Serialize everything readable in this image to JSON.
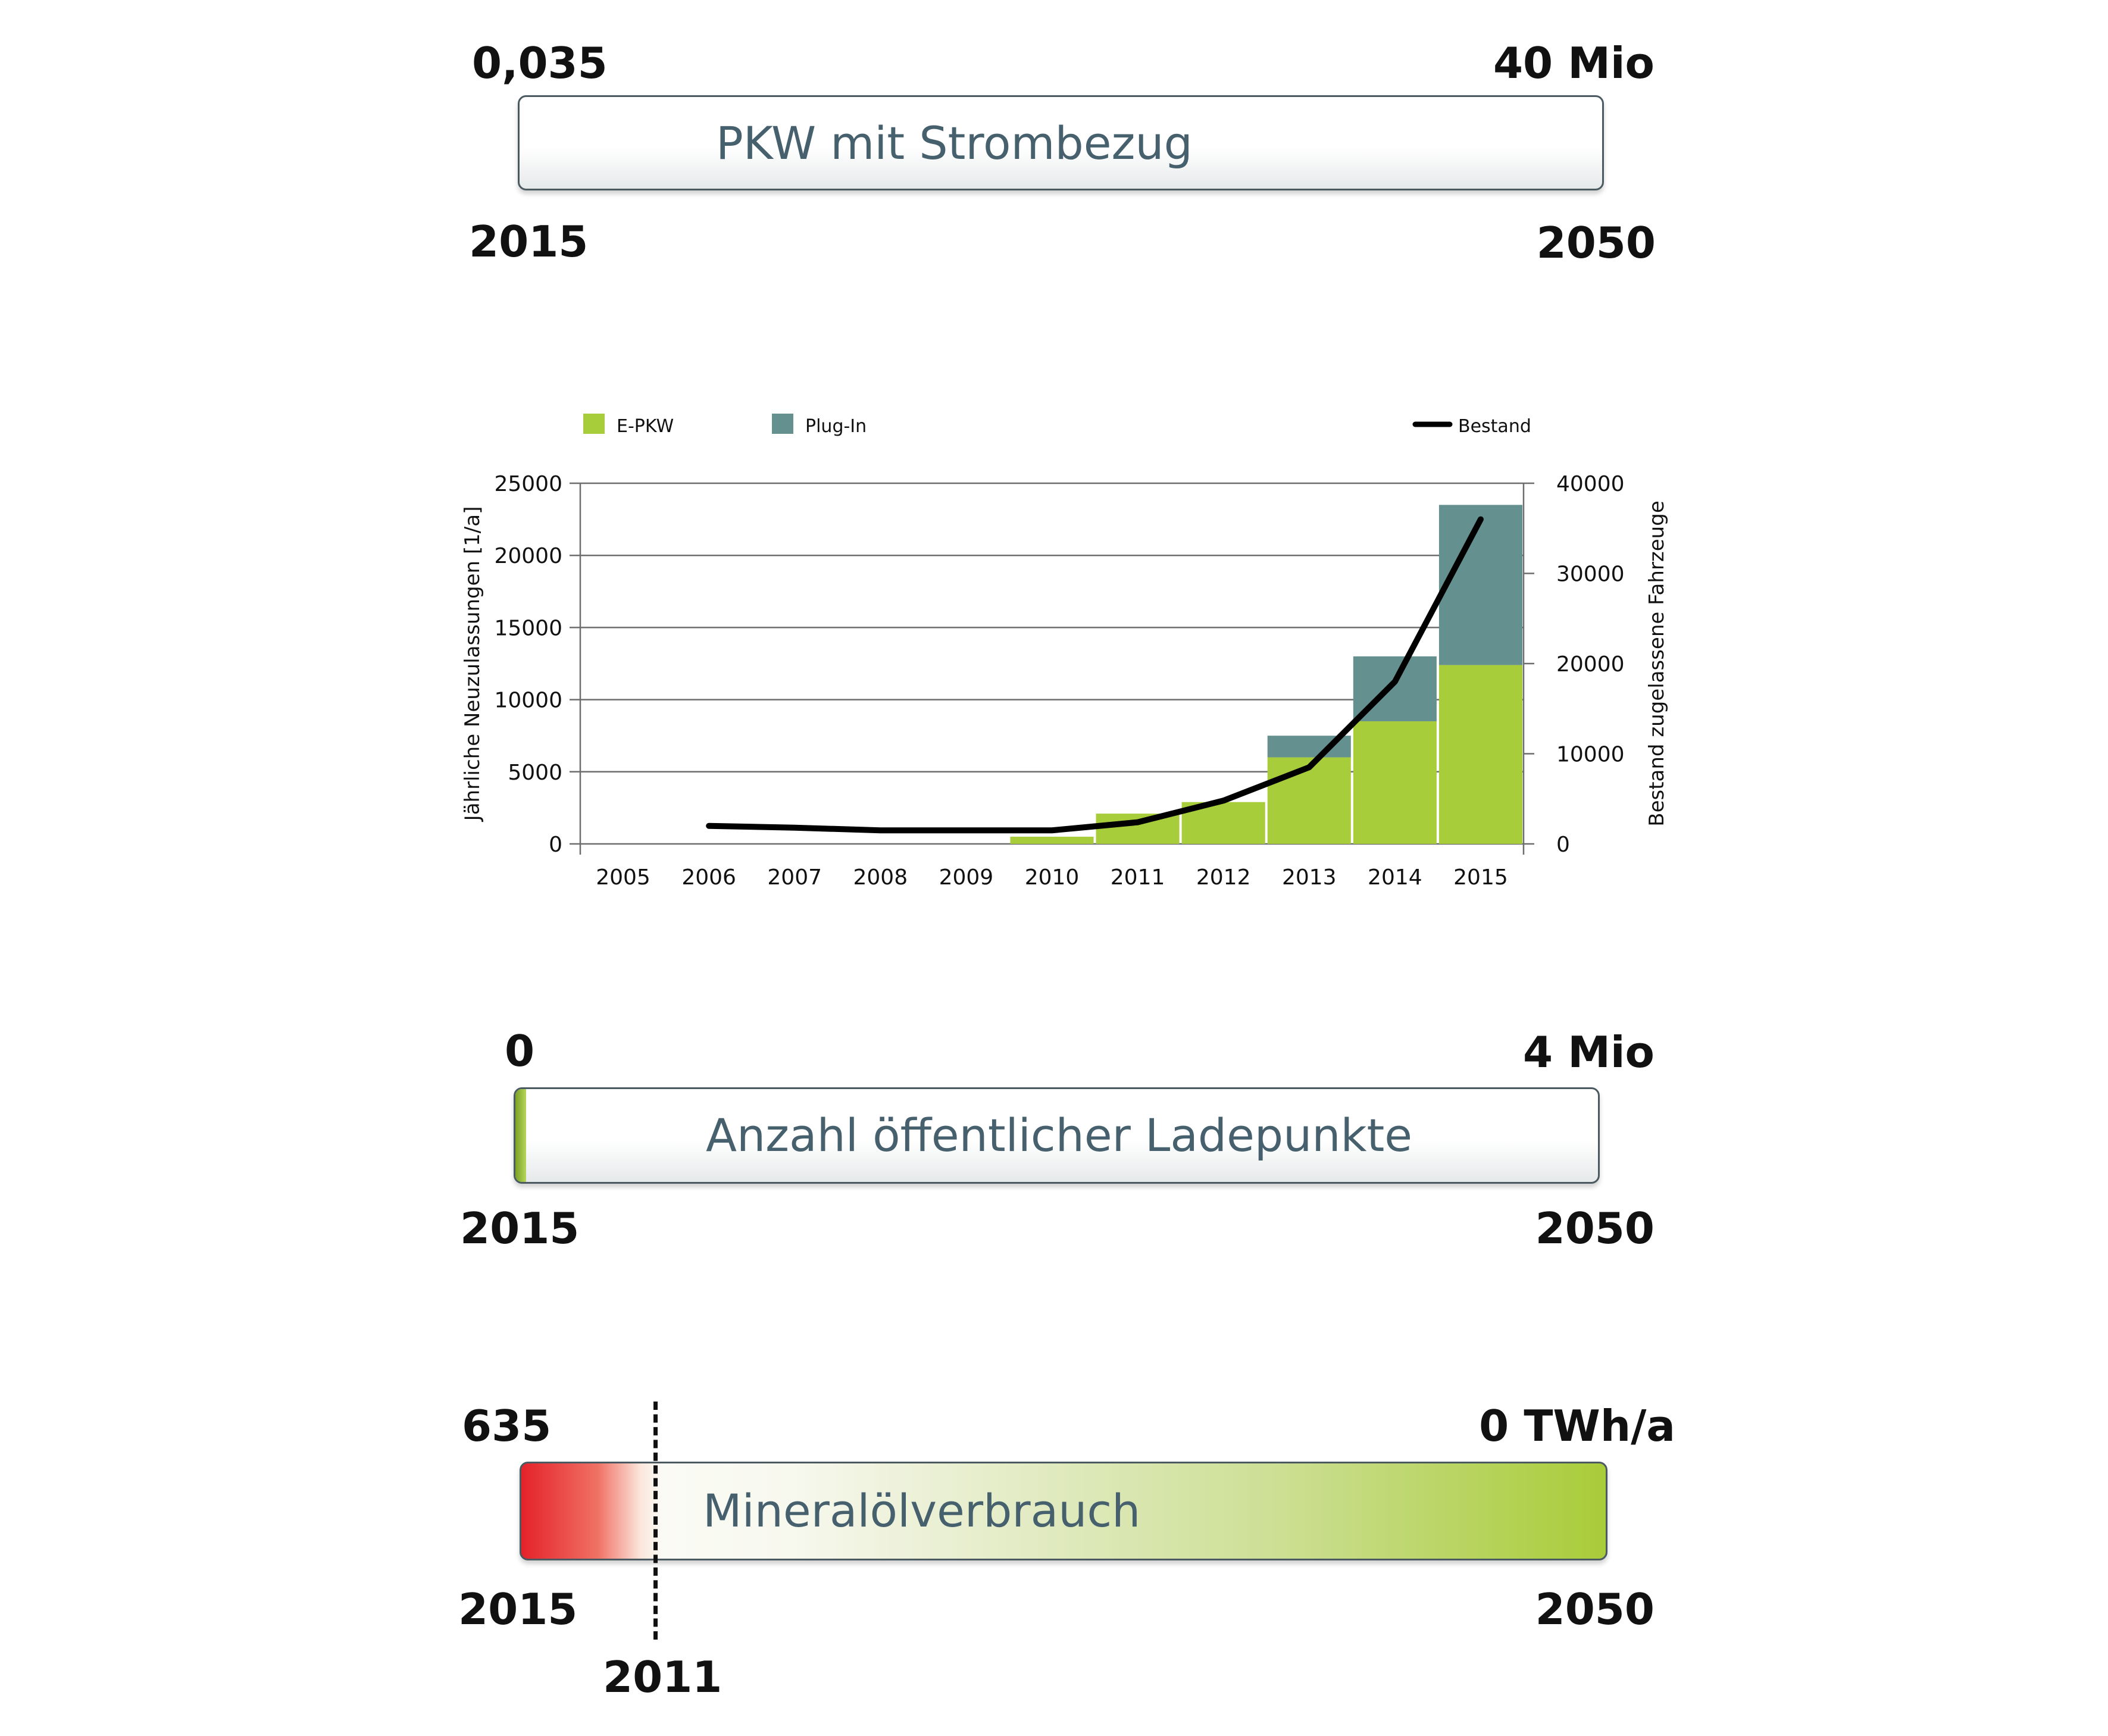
{
  "bar1": {
    "value_left": "0,035",
    "value_right": "40 Mio",
    "label": "PKW mit Strombezug",
    "year_left": "2015",
    "year_right": "2050"
  },
  "chart_data": {
    "type": "bar",
    "title": "",
    "legend": [
      {
        "label": "E-PKW",
        "color": "#a8cd3a",
        "kind": "square"
      },
      {
        "label": "Plug-In",
        "color": "#64918f",
        "kind": "square"
      },
      {
        "label": "Bestand",
        "color": "#000000",
        "kind": "line"
      }
    ],
    "legend_position": "top",
    "categories": [
      "2005",
      "2006",
      "2007",
      "2008",
      "2009",
      "2010",
      "2011",
      "2012",
      "2013",
      "2014",
      "2015"
    ],
    "series": [
      {
        "name": "E-PKW",
        "axis": "left",
        "stack": "a",
        "values": [
          0,
          0,
          0,
          0,
          0,
          500,
          2100,
          2900,
          6000,
          8500,
          12400
        ]
      },
      {
        "name": "Plug-In",
        "axis": "left",
        "stack": "a",
        "values": [
          0,
          0,
          0,
          0,
          0,
          0,
          0,
          0,
          1500,
          4500,
          11100
        ]
      },
      {
        "name": "Bestand",
        "axis": "right",
        "type": "line",
        "values": [
          null,
          2000,
          1800,
          1500,
          1500,
          1500,
          2400,
          4800,
          8500,
          18000,
          36000
        ]
      }
    ],
    "ylabel": "Jährliche Neuzulassungen [1/a]",
    "ylim": [
      0,
      25000
    ],
    "yticks": [
      "0",
      "5000",
      "10000",
      "15000",
      "20000",
      "25000"
    ],
    "y2label": "Bestand zugelassene Fahrzeuge",
    "y2lim": [
      0,
      40000
    ],
    "y2ticks": [
      "0",
      "10000",
      "20000",
      "30000",
      "40000"
    ],
    "grid": true
  },
  "bar2": {
    "value_left": "0",
    "value_right": "4 Mio",
    "label": "Anzahl öffentlicher Ladepunkte",
    "year_left": "2015",
    "year_right": "2050"
  },
  "bar3": {
    "value_left": "635",
    "value_right": "0 TWh/a",
    "label": "Mineralölverbrauch",
    "year_left": "2015",
    "year_right": "2050",
    "marker_year": "2011"
  },
  "colors": {
    "epkw": "#a8cd3a",
    "plugin": "#64918f",
    "bestand": "#000000",
    "oil_start": "#e4222a",
    "oil_end": "#a9cc39",
    "label_text": "#46606d"
  }
}
